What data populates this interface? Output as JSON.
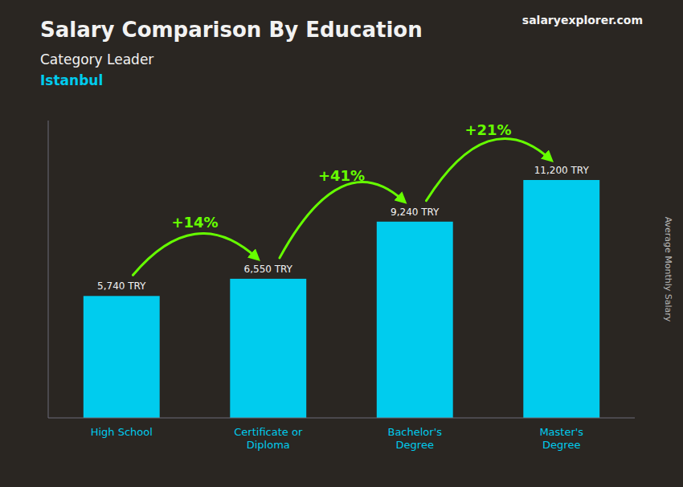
{
  "chart_data": {
    "type": "bar",
    "title": "Salary Comparison By Education",
    "subtitle": "Category Leader",
    "location": "Istanbul",
    "source": "salaryexplorer.com",
    "y_label": "Average Monthly Salary",
    "categories": [
      "High School",
      "Certificate or\nDiploma",
      "Bachelor's\nDegree",
      "Master's\nDegree"
    ],
    "values": [
      5740,
      6550,
      9240,
      11200
    ],
    "value_labels": [
      "5,740 TRY",
      "6,550 TRY",
      "9,240 TRY",
      "11,200 TRY"
    ],
    "data_labels": true,
    "annotations": [
      "+14%",
      "+41%",
      "+21%"
    ],
    "color": "#00ccee",
    "ylim": [
      0,
      14000
    ],
    "tick_labels": "x",
    "grid": false
  }
}
